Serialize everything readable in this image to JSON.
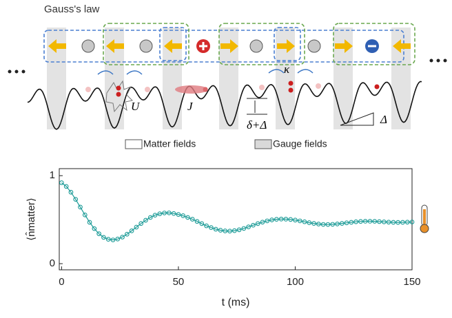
{
  "diagram": {
    "title": "Gauss's law",
    "labels": {
      "U": "U",
      "J": "J",
      "kappa": "κ",
      "offset": "δ+Δ",
      "tilt": "Δ"
    },
    "legend": [
      "Matter fields",
      "Gauge fields"
    ]
  },
  "chart_data": {
    "type": "scatter",
    "xlabel": "t (ms)",
    "ylabel": "⟨n̂matter⟩",
    "x": [
      0,
      2,
      4,
      6,
      8,
      10,
      12,
      14,
      16,
      18,
      20,
      22,
      24,
      26,
      28,
      30,
      32,
      34,
      36,
      38,
      40,
      42,
      44,
      46,
      48,
      50,
      52,
      54,
      56,
      58,
      60,
      62,
      64,
      66,
      68,
      70,
      72,
      74,
      76,
      78,
      80,
      82,
      84,
      86,
      88,
      90,
      92,
      94,
      96,
      98,
      100,
      102,
      104,
      106,
      108,
      110,
      112,
      114,
      116,
      118,
      120,
      122,
      124,
      126,
      128,
      130,
      132,
      134,
      136,
      138,
      140,
      142,
      144,
      146,
      148,
      150
    ],
    "series": [
      {
        "color": "#1a9a96",
        "values": [
          0.92,
          0.878,
          0.812,
          0.731,
          0.643,
          0.554,
          0.47,
          0.398,
          0.34,
          0.299,
          0.277,
          0.27,
          0.28,
          0.302,
          0.335,
          0.373,
          0.415,
          0.456,
          0.493,
          0.525,
          0.551,
          0.567,
          0.576,
          0.577,
          0.57,
          0.559,
          0.545,
          0.525,
          0.505,
          0.48,
          0.455,
          0.43,
          0.41,
          0.392,
          0.38,
          0.372,
          0.37,
          0.375,
          0.385,
          0.4,
          0.418,
          0.437,
          0.455,
          0.472,
          0.486,
          0.497,
          0.504,
          0.507,
          0.506,
          0.502,
          0.495,
          0.486,
          0.476,
          0.466,
          0.457,
          0.45,
          0.446,
          0.445,
          0.447,
          0.451,
          0.457,
          0.464,
          0.47,
          0.476,
          0.48,
          0.482,
          0.482,
          0.481,
          0.478,
          0.475,
          0.472,
          0.47,
          0.469,
          0.47,
          0.472,
          0.474
        ]
      }
    ],
    "xlim": [
      -1,
      150
    ],
    "ylim": [
      -0.07,
      1.08
    ],
    "xticks": [
      0,
      50,
      100,
      150
    ],
    "yticks": [
      0,
      1
    ]
  }
}
